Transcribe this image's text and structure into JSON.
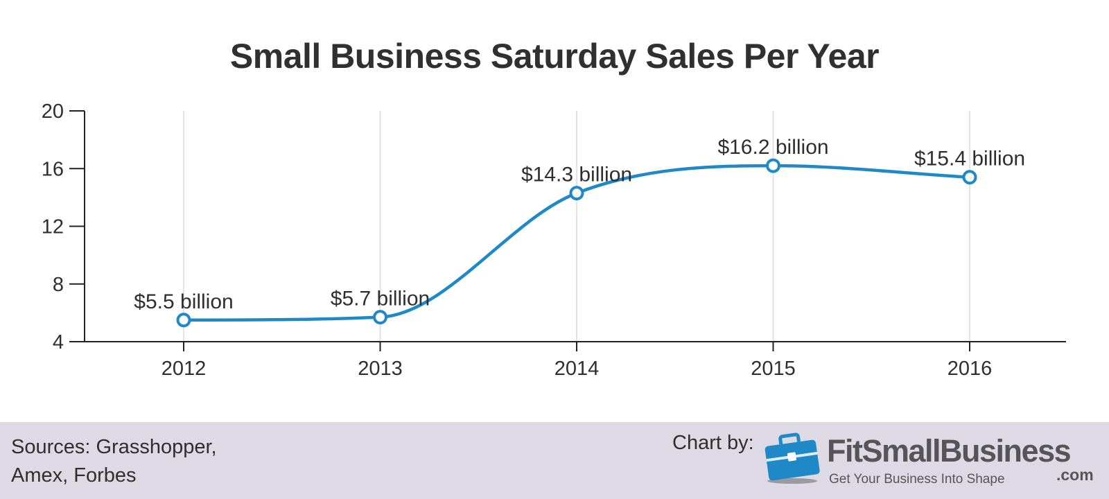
{
  "chart_data": {
    "type": "line",
    "title": "Small Business Saturday Sales Per Year",
    "categories": [
      "2012",
      "2013",
      "2014",
      "2015",
      "2016"
    ],
    "values": [
      5.5,
      5.7,
      14.3,
      16.2,
      15.4
    ],
    "data_labels": [
      "$5.5 billion",
      "$5.7 billion",
      "$14.3 billion",
      "$16.2 billion",
      "$15.4 billion"
    ],
    "y_ticks": [
      4,
      8,
      12,
      16,
      20
    ],
    "ylim": [
      4,
      20
    ],
    "xlabel": "",
    "ylabel": "",
    "grid": "vertical",
    "color": "#1f88c7"
  },
  "footer": {
    "sources_line1": "Sources: Grasshopper,",
    "sources_line2": "Amex, Forbes",
    "chart_by": "Chart by:",
    "brand": "FitSmallBusiness",
    "tagline": "Get Your Business Into Shape",
    "dotcom": ".com",
    "logo_icon": "briefcase-icon",
    "brand_color": "#1f88c7"
  }
}
